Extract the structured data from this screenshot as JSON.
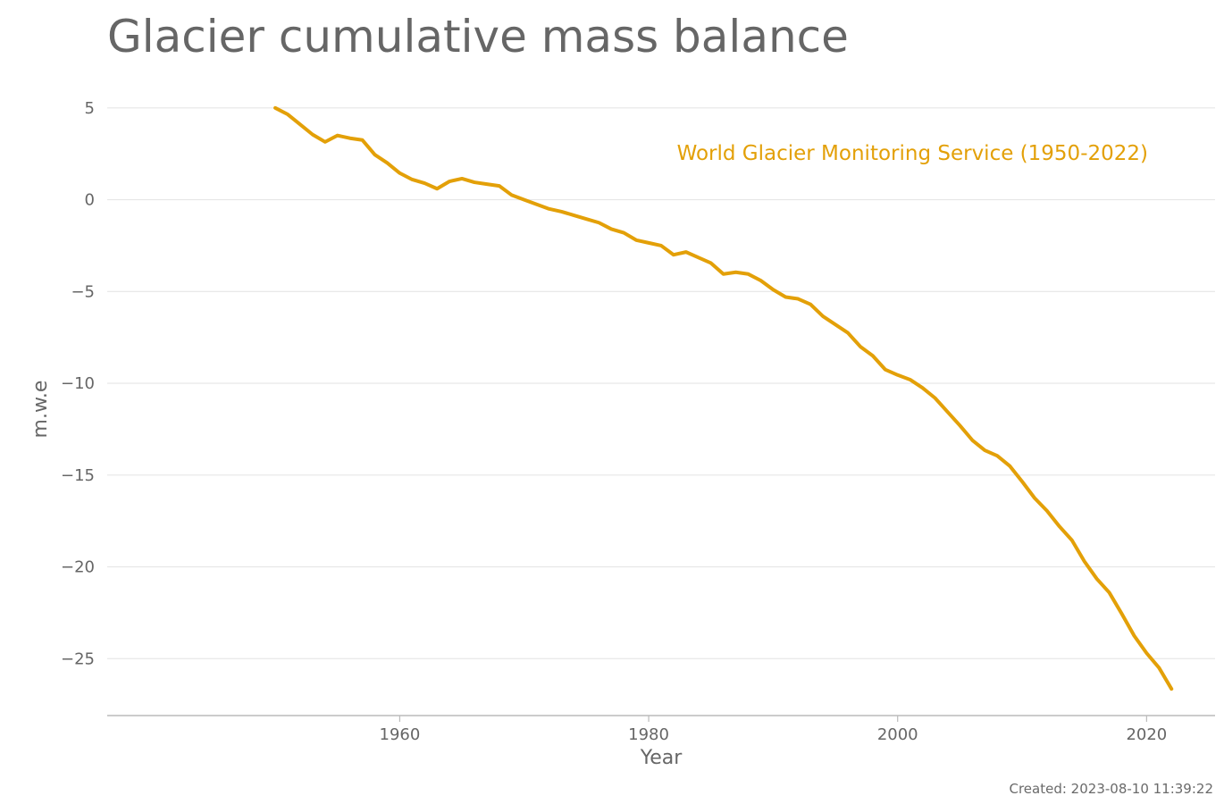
{
  "title": "Glacier cumulative mass balance",
  "footer": "Created: 2023-08-10 11:39:22",
  "chart_data": {
    "type": "line",
    "title": "Glacier cumulative mass balance",
    "xlabel": "Year",
    "ylabel": "m.w.e",
    "xlim": [
      1936.5,
      2025.5
    ],
    "ylim": [
      -28.1,
      6.5
    ],
    "xticks": [
      1960,
      1980,
      2000,
      2020
    ],
    "yticks": [
      5,
      0,
      -5,
      -10,
      -15,
      -20,
      -25
    ],
    "ytick_labels": [
      "5",
      "0",
      "−5",
      "−10",
      "−15",
      "−20",
      "−25"
    ],
    "grid": "horizontal",
    "legend": "inline label, top-right",
    "series": [
      {
        "name": "World Glacier Monitoring Service (1950-2022)",
        "color": "#E3A008",
        "x": [
          1950,
          1951,
          1952,
          1953,
          1954,
          1955,
          1956,
          1957,
          1958,
          1959,
          1960,
          1961,
          1962,
          1963,
          1964,
          1965,
          1966,
          1967,
          1968,
          1969,
          1970,
          1971,
          1972,
          1973,
          1974,
          1975,
          1976,
          1977,
          1978,
          1979,
          1980,
          1981,
          1982,
          1983,
          1984,
          1985,
          1986,
          1987,
          1988,
          1989,
          1990,
          1991,
          1992,
          1993,
          1994,
          1995,
          1996,
          1997,
          1998,
          1999,
          2000,
          2001,
          2002,
          2003,
          2004,
          2005,
          2006,
          2007,
          2008,
          2009,
          2010,
          2011,
          2012,
          2013,
          2014,
          2015,
          2016,
          2017,
          2018,
          2019,
          2020,
          2021,
          2022
        ],
        "values": [
          5.0,
          4.65,
          4.1,
          3.55,
          3.15,
          3.5,
          3.35,
          3.25,
          2.45,
          2.0,
          1.45,
          1.1,
          0.9,
          0.6,
          1.0,
          1.15,
          0.95,
          0.85,
          0.75,
          0.25,
          0.0,
          -0.25,
          -0.5,
          -0.65,
          -0.85,
          -1.05,
          -1.25,
          -1.6,
          -1.8,
          -2.2,
          -2.35,
          -2.5,
          -3.0,
          -2.85,
          -3.15,
          -3.45,
          -4.05,
          -3.95,
          -4.05,
          -4.4,
          -4.9,
          -5.3,
          -5.4,
          -5.7,
          -6.35,
          -6.8,
          -7.25,
          -8.0,
          -8.5,
          -9.25,
          -9.55,
          -9.8,
          -10.25,
          -10.8,
          -11.55,
          -12.3,
          -13.1,
          -13.65,
          -13.95,
          -14.5,
          -15.35,
          -16.25,
          -16.95,
          -17.8,
          -18.55,
          -19.7,
          -20.65,
          -21.4,
          -22.55,
          -23.75,
          -24.7,
          -25.5,
          -26.65
        ]
      }
    ]
  }
}
